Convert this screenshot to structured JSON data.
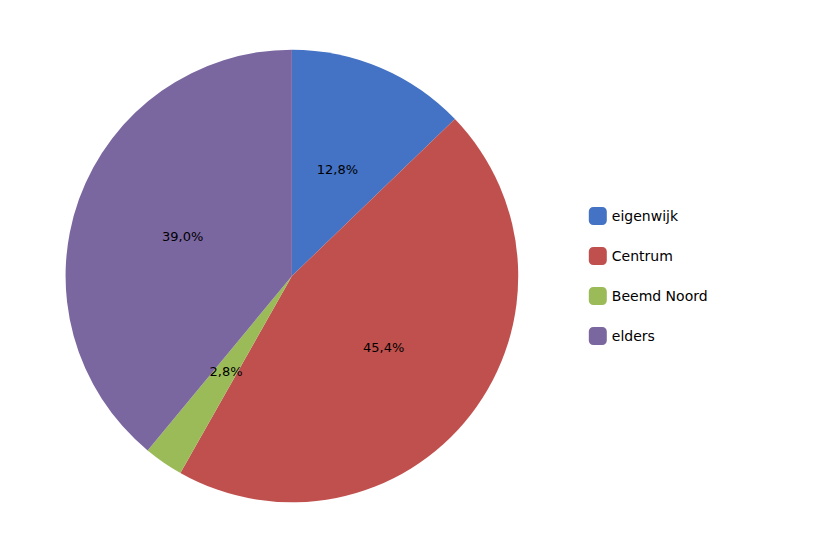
{
  "chart_data": {
    "type": "pie",
    "categories": [
      "eigenwijk",
      "Centrum",
      "Beemd Noord",
      "elders"
    ],
    "values": [
      12.8,
      45.4,
      2.8,
      39.0
    ],
    "value_labels": [
      "12,8%",
      "45,4%",
      "2,8%",
      "39,0%"
    ],
    "colors": [
      "#4472C4",
      "#C0504D",
      "#9BBB59",
      "#7B67A0"
    ],
    "data_labels": true,
    "legend": "right"
  }
}
